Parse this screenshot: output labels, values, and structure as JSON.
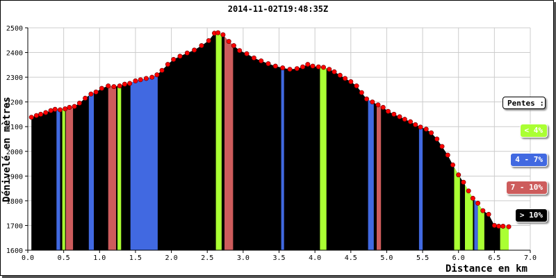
{
  "chart_data": {
    "type": "area",
    "title": "2014-11-02T19:48:35Z",
    "xlabel": "Distance en km",
    "ylabel": "Dénivelé en mètres",
    "xlim": [
      0,
      7.0
    ],
    "ylim": [
      1600,
      2500
    ],
    "xticks": [
      "0.0",
      "0.5",
      "1.0",
      "1.5",
      "2.0",
      "2.5",
      "3.0",
      "3.5",
      "4.0",
      "4.5",
      "5.0",
      "5.5",
      "6.0",
      "6.5",
      "7.0"
    ],
    "yticks": [
      "1600",
      "1700",
      "1800",
      "1900",
      "2000",
      "2100",
      "2200",
      "2300",
      "2400",
      "2500"
    ],
    "grid": true,
    "profile": [
      [
        0.05,
        2138
      ],
      [
        0.12,
        2145
      ],
      [
        0.18,
        2150
      ],
      [
        0.25,
        2157
      ],
      [
        0.32,
        2165
      ],
      [
        0.38,
        2170
      ],
      [
        0.45,
        2168
      ],
      [
        0.52,
        2172
      ],
      [
        0.58,
        2178
      ],
      [
        0.65,
        2182
      ],
      [
        0.72,
        2195
      ],
      [
        0.8,
        2215
      ],
      [
        0.88,
        2232
      ],
      [
        0.95,
        2240
      ],
      [
        1.03,
        2255
      ],
      [
        1.12,
        2265
      ],
      [
        1.2,
        2262
      ],
      [
        1.28,
        2265
      ],
      [
        1.35,
        2272
      ],
      [
        1.42,
        2275
      ],
      [
        1.5,
        2285
      ],
      [
        1.57,
        2290
      ],
      [
        1.65,
        2295
      ],
      [
        1.73,
        2300
      ],
      [
        1.8,
        2310
      ],
      [
        1.87,
        2328
      ],
      [
        1.95,
        2352
      ],
      [
        2.03,
        2372
      ],
      [
        2.12,
        2385
      ],
      [
        2.22,
        2398
      ],
      [
        2.32,
        2410
      ],
      [
        2.42,
        2428
      ],
      [
        2.52,
        2448
      ],
      [
        2.6,
        2478
      ],
      [
        2.65,
        2480
      ],
      [
        2.72,
        2472
      ],
      [
        2.8,
        2445
      ],
      [
        2.87,
        2428
      ],
      [
        2.95,
        2408
      ],
      [
        3.05,
        2395
      ],
      [
        3.15,
        2378
      ],
      [
        3.25,
        2366
      ],
      [
        3.35,
        2355
      ],
      [
        3.45,
        2345
      ],
      [
        3.55,
        2338
      ],
      [
        3.65,
        2332
      ],
      [
        3.75,
        2335
      ],
      [
        3.83,
        2342
      ],
      [
        3.9,
        2352
      ],
      [
        3.97,
        2345
      ],
      [
        4.05,
        2342
      ],
      [
        4.12,
        2340
      ],
      [
        4.2,
        2332
      ],
      [
        4.27,
        2322
      ],
      [
        4.35,
        2308
      ],
      [
        4.42,
        2295
      ],
      [
        4.5,
        2282
      ],
      [
        4.58,
        2265
      ],
      [
        4.65,
        2238
      ],
      [
        4.72,
        2212
      ],
      [
        4.8,
        2200
      ],
      [
        4.88,
        2188
      ],
      [
        4.95,
        2178
      ],
      [
        5.02,
        2162
      ],
      [
        5.1,
        2150
      ],
      [
        5.18,
        2140
      ],
      [
        5.25,
        2130
      ],
      [
        5.33,
        2120
      ],
      [
        5.4,
        2108
      ],
      [
        5.47,
        2098
      ],
      [
        5.55,
        2090
      ],
      [
        5.62,
        2075
      ],
      [
        5.7,
        2050
      ],
      [
        5.77,
        2020
      ],
      [
        5.85,
        1985
      ],
      [
        5.92,
        1945
      ],
      [
        6.0,
        1905
      ],
      [
        6.07,
        1875
      ],
      [
        6.14,
        1840
      ],
      [
        6.2,
        1810
      ],
      [
        6.27,
        1790
      ],
      [
        6.34,
        1760
      ],
      [
        6.42,
        1745
      ],
      [
        6.5,
        1700
      ],
      [
        6.56,
        1697
      ],
      [
        6.62,
        1697
      ],
      [
        6.7,
        1695
      ]
    ],
    "slope_bands": [
      {
        "x0": 0.05,
        "x1": 0.1,
        "cls": "steep"
      },
      {
        "x0": 0.14,
        "x1": 0.19,
        "cls": "steep"
      },
      {
        "x0": 0.23,
        "x1": 0.28,
        "cls": "steep"
      },
      {
        "x0": 0.4,
        "x1": 0.45,
        "cls": "moderate"
      },
      {
        "x0": 0.48,
        "x1": 0.52,
        "cls": "gentle"
      },
      {
        "x0": 0.53,
        "x1": 0.63,
        "cls": "strong"
      },
      {
        "x0": 0.85,
        "x1": 0.92,
        "cls": "moderate"
      },
      {
        "x0": 1.12,
        "x1": 1.23,
        "cls": "strong"
      },
      {
        "x0": 1.25,
        "x1": 1.3,
        "cls": "gentle"
      },
      {
        "x0": 1.43,
        "x1": 1.81,
        "cls": "moderate"
      },
      {
        "x0": 2.62,
        "x1": 2.7,
        "cls": "gentle"
      },
      {
        "x0": 2.74,
        "x1": 2.86,
        "cls": "strong"
      },
      {
        "x0": 3.53,
        "x1": 3.57,
        "cls": "moderate"
      },
      {
        "x0": 4.07,
        "x1": 4.16,
        "cls": "gentle"
      },
      {
        "x0": 4.74,
        "x1": 4.82,
        "cls": "moderate"
      },
      {
        "x0": 4.86,
        "x1": 4.92,
        "cls": "strong"
      },
      {
        "x0": 5.45,
        "x1": 5.5,
        "cls": "moderate"
      },
      {
        "x0": 5.94,
        "x1": 6.02,
        "cls": "gentle"
      },
      {
        "x0": 6.09,
        "x1": 6.2,
        "cls": "gentle"
      },
      {
        "x0": 6.22,
        "x1": 6.27,
        "cls": "moderate"
      },
      {
        "x0": 6.27,
        "x1": 6.36,
        "cls": "gentle"
      },
      {
        "x0": 6.58,
        "x1": 6.7,
        "cls": "gentle"
      }
    ],
    "legend": {
      "title": "Pentes :",
      "placement": "right",
      "entries": [
        {
          "key": "gentle",
          "label": "< 4%",
          "color": "#aaff33",
          "text_color": "#ffffff"
        },
        {
          "key": "moderate",
          "label": "4 - 7%",
          "color": "#4169e1",
          "text_color": "#ffffff"
        },
        {
          "key": "strong",
          "label": "7 - 10%",
          "color": "#cd5c5c",
          "text_color": "#ffffff"
        },
        {
          "key": "steep",
          "label": "> 10%",
          "color": "#000000",
          "text_color": "#ffffff"
        }
      ]
    },
    "colors": {
      "fill": "#000000",
      "marker": "#ff0000",
      "grid": "#cccccc"
    }
  }
}
